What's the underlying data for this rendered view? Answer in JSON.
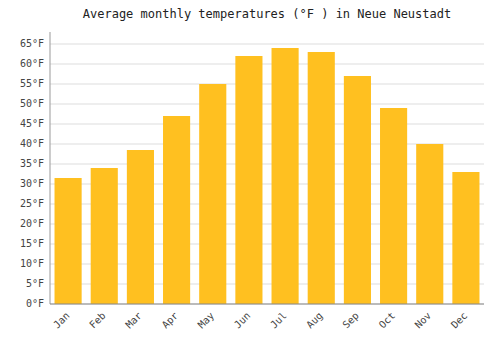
{
  "chart_data": {
    "type": "bar",
    "title": "Average monthly temperatures (°F ) in Neue Neustadt",
    "categories": [
      "Jan",
      "Feb",
      "Mar",
      "Apr",
      "May",
      "Jun",
      "Jul",
      "Aug",
      "Sep",
      "Oct",
      "Nov",
      "Dec"
    ],
    "values": [
      31.5,
      34.0,
      38.5,
      47.0,
      55.0,
      62.0,
      64.0,
      63.0,
      57.0,
      49.0,
      40.0,
      33.0
    ],
    "color": "#FFC020",
    "ylim": [
      0,
      68
    ],
    "yticks": [
      {
        "value": 0,
        "label": "0°F"
      },
      {
        "value": 5,
        "label": "5°F"
      },
      {
        "value": 10,
        "label": "10°F"
      },
      {
        "value": 15,
        "label": "15°F"
      },
      {
        "value": 20,
        "label": "20°F"
      },
      {
        "value": 25,
        "label": "25°F"
      },
      {
        "value": 30,
        "label": "30°F"
      },
      {
        "value": 35,
        "label": "35°F"
      },
      {
        "value": 40,
        "label": "40°F"
      },
      {
        "value": 45,
        "label": "45°F"
      },
      {
        "value": 50,
        "label": "50°F"
      },
      {
        "value": 55,
        "label": "55°F"
      },
      {
        "value": 60,
        "label": "60°F"
      },
      {
        "value": 65,
        "label": "65°F"
      }
    ],
    "grid": true
  }
}
